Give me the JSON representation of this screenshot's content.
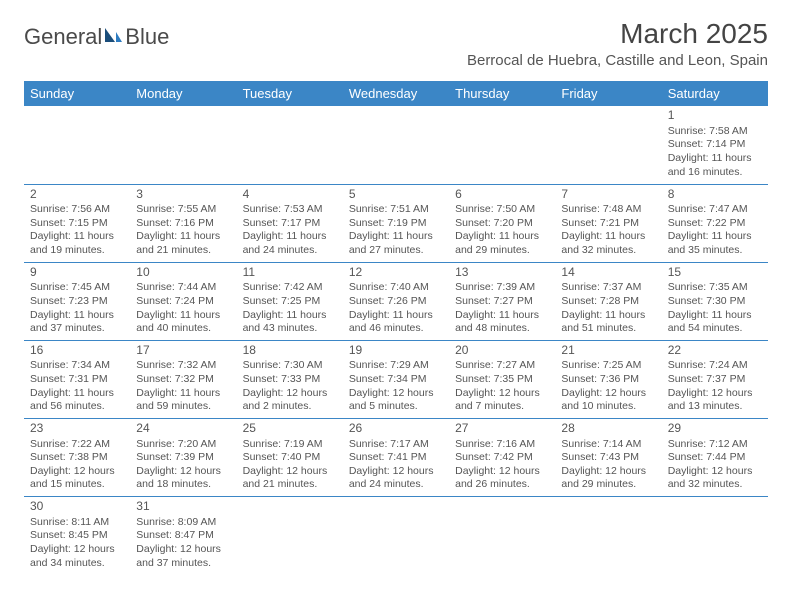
{
  "logo": {
    "text1": "General",
    "text2": "Blue"
  },
  "header": {
    "month_title": "March 2025",
    "location": "Berrocal de Huebra, Castille and Leon, Spain"
  },
  "colors": {
    "header_bg": "#3b86c6",
    "header_text": "#ffffff",
    "accent_blue": "#2d7bc0",
    "body_text": "#555555",
    "page_bg": "#ffffff"
  },
  "typography": {
    "title_fontsize": 28,
    "location_fontsize": 15,
    "weekday_fontsize": 13,
    "cell_fontsize": 10.5,
    "daynum_fontsize": 12
  },
  "calendar": {
    "type": "table",
    "columns": [
      "Sunday",
      "Monday",
      "Tuesday",
      "Wednesday",
      "Thursday",
      "Friday",
      "Saturday"
    ],
    "first_day_column_index": 6,
    "days": [
      {
        "n": 1,
        "sunrise": "7:58 AM",
        "sunset": "7:14 PM",
        "daylight": "11 hours and 16 minutes."
      },
      {
        "n": 2,
        "sunrise": "7:56 AM",
        "sunset": "7:15 PM",
        "daylight": "11 hours and 19 minutes."
      },
      {
        "n": 3,
        "sunrise": "7:55 AM",
        "sunset": "7:16 PM",
        "daylight": "11 hours and 21 minutes."
      },
      {
        "n": 4,
        "sunrise": "7:53 AM",
        "sunset": "7:17 PM",
        "daylight": "11 hours and 24 minutes."
      },
      {
        "n": 5,
        "sunrise": "7:51 AM",
        "sunset": "7:19 PM",
        "daylight": "11 hours and 27 minutes."
      },
      {
        "n": 6,
        "sunrise": "7:50 AM",
        "sunset": "7:20 PM",
        "daylight": "11 hours and 29 minutes."
      },
      {
        "n": 7,
        "sunrise": "7:48 AM",
        "sunset": "7:21 PM",
        "daylight": "11 hours and 32 minutes."
      },
      {
        "n": 8,
        "sunrise": "7:47 AM",
        "sunset": "7:22 PM",
        "daylight": "11 hours and 35 minutes."
      },
      {
        "n": 9,
        "sunrise": "7:45 AM",
        "sunset": "7:23 PM",
        "daylight": "11 hours and 37 minutes."
      },
      {
        "n": 10,
        "sunrise": "7:44 AM",
        "sunset": "7:24 PM",
        "daylight": "11 hours and 40 minutes."
      },
      {
        "n": 11,
        "sunrise": "7:42 AM",
        "sunset": "7:25 PM",
        "daylight": "11 hours and 43 minutes."
      },
      {
        "n": 12,
        "sunrise": "7:40 AM",
        "sunset": "7:26 PM",
        "daylight": "11 hours and 46 minutes."
      },
      {
        "n": 13,
        "sunrise": "7:39 AM",
        "sunset": "7:27 PM",
        "daylight": "11 hours and 48 minutes."
      },
      {
        "n": 14,
        "sunrise": "7:37 AM",
        "sunset": "7:28 PM",
        "daylight": "11 hours and 51 minutes."
      },
      {
        "n": 15,
        "sunrise": "7:35 AM",
        "sunset": "7:30 PM",
        "daylight": "11 hours and 54 minutes."
      },
      {
        "n": 16,
        "sunrise": "7:34 AM",
        "sunset": "7:31 PM",
        "daylight": "11 hours and 56 minutes."
      },
      {
        "n": 17,
        "sunrise": "7:32 AM",
        "sunset": "7:32 PM",
        "daylight": "11 hours and 59 minutes."
      },
      {
        "n": 18,
        "sunrise": "7:30 AM",
        "sunset": "7:33 PM",
        "daylight": "12 hours and 2 minutes."
      },
      {
        "n": 19,
        "sunrise": "7:29 AM",
        "sunset": "7:34 PM",
        "daylight": "12 hours and 5 minutes."
      },
      {
        "n": 20,
        "sunrise": "7:27 AM",
        "sunset": "7:35 PM",
        "daylight": "12 hours and 7 minutes."
      },
      {
        "n": 21,
        "sunrise": "7:25 AM",
        "sunset": "7:36 PM",
        "daylight": "12 hours and 10 minutes."
      },
      {
        "n": 22,
        "sunrise": "7:24 AM",
        "sunset": "7:37 PM",
        "daylight": "12 hours and 13 minutes."
      },
      {
        "n": 23,
        "sunrise": "7:22 AM",
        "sunset": "7:38 PM",
        "daylight": "12 hours and 15 minutes."
      },
      {
        "n": 24,
        "sunrise": "7:20 AM",
        "sunset": "7:39 PM",
        "daylight": "12 hours and 18 minutes."
      },
      {
        "n": 25,
        "sunrise": "7:19 AM",
        "sunset": "7:40 PM",
        "daylight": "12 hours and 21 minutes."
      },
      {
        "n": 26,
        "sunrise": "7:17 AM",
        "sunset": "7:41 PM",
        "daylight": "12 hours and 24 minutes."
      },
      {
        "n": 27,
        "sunrise": "7:16 AM",
        "sunset": "7:42 PM",
        "daylight": "12 hours and 26 minutes."
      },
      {
        "n": 28,
        "sunrise": "7:14 AM",
        "sunset": "7:43 PM",
        "daylight": "12 hours and 29 minutes."
      },
      {
        "n": 29,
        "sunrise": "7:12 AM",
        "sunset": "7:44 PM",
        "daylight": "12 hours and 32 minutes."
      },
      {
        "n": 30,
        "sunrise": "8:11 AM",
        "sunset": "8:45 PM",
        "daylight": "12 hours and 34 minutes."
      },
      {
        "n": 31,
        "sunrise": "8:09 AM",
        "sunset": "8:47 PM",
        "daylight": "12 hours and 37 minutes."
      }
    ],
    "labels": {
      "sunrise": "Sunrise:",
      "sunset": "Sunset:",
      "daylight": "Daylight:"
    }
  }
}
